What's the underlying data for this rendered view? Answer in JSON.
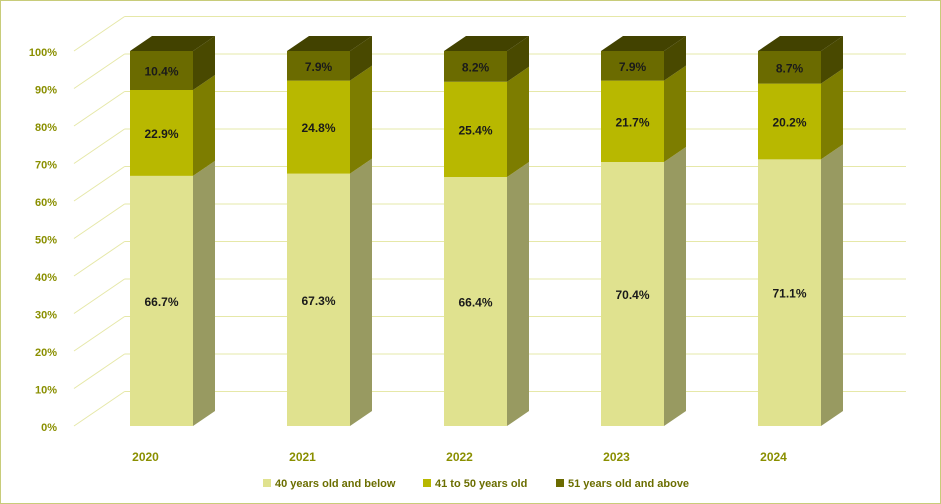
{
  "chart_data": {
    "type": "bar",
    "stacked": true,
    "three_d": true,
    "categories": [
      "2020",
      "2021",
      "2022",
      "2023",
      "2024"
    ],
    "series": [
      {
        "name": "40 years old and below",
        "values": [
          66.7,
          67.3,
          66.4,
          70.4,
          71.1
        ],
        "color": "#e0e28f"
      },
      {
        "name": "41 to 50 years old",
        "values": [
          22.9,
          24.8,
          25.4,
          21.7,
          20.2
        ],
        "color": "#b8b800"
      },
      {
        "name": "51 years old and above",
        "values": [
          10.4,
          7.9,
          8.2,
          7.9,
          8.7
        ],
        "color": "#6b6b00"
      }
    ],
    "yticks": [
      "0%",
      "10%",
      "20%",
      "30%",
      "40%",
      "50%",
      "60%",
      "70%",
      "80%",
      "90%",
      "100%"
    ],
    "ylim": [
      0,
      100
    ],
    "grid": true,
    "legend": "bottom"
  }
}
